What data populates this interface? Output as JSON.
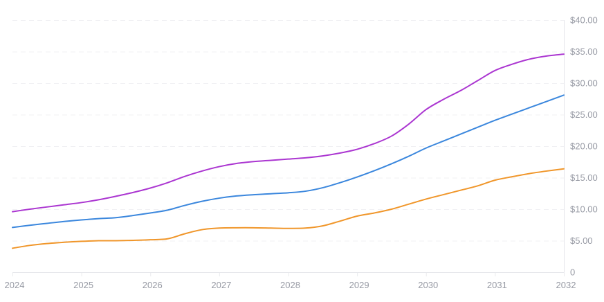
{
  "chart_data": {
    "type": "line",
    "title": "",
    "xlabel": "",
    "ylabel": "",
    "xlim": [
      2024,
      2032
    ],
    "ylim": [
      0,
      40
    ],
    "grid": "horizontal-dashed",
    "legend_position": "none",
    "y_axis_side": "right",
    "x": [
      2024,
      2024.25,
      2024.5,
      2024.75,
      2025,
      2025.25,
      2025.5,
      2025.75,
      2026,
      2026.25,
      2026.5,
      2026.75,
      2027,
      2027.25,
      2027.5,
      2027.75,
      2028,
      2028.25,
      2028.5,
      2028.75,
      2029,
      2029.25,
      2029.5,
      2029.75,
      2030,
      2030.25,
      2030.5,
      2030.75,
      2031,
      2031.25,
      2031.5,
      2031.75,
      2032
    ],
    "series": [
      {
        "name": "purple-line",
        "color": "#ab36d1",
        "values": [
          9.6,
          10.0,
          10.35,
          10.7,
          11.05,
          11.5,
          12.05,
          12.65,
          13.35,
          14.2,
          15.2,
          16.05,
          16.75,
          17.25,
          17.55,
          17.75,
          17.95,
          18.15,
          18.45,
          18.9,
          19.5,
          20.4,
          21.6,
          23.5,
          25.8,
          27.4,
          28.8,
          30.4,
          32.0,
          33.0,
          33.8,
          34.3,
          34.6
        ]
      },
      {
        "name": "blue-line",
        "color": "#3b87dd",
        "values": [
          7.1,
          7.45,
          7.75,
          8.05,
          8.3,
          8.5,
          8.65,
          9.0,
          9.4,
          9.85,
          10.6,
          11.25,
          11.75,
          12.1,
          12.3,
          12.45,
          12.6,
          12.85,
          13.4,
          14.2,
          15.1,
          16.1,
          17.2,
          18.4,
          19.7,
          20.8,
          21.9,
          23.0,
          24.1,
          25.1,
          26.1,
          27.1,
          28.1
        ]
      },
      {
        "name": "orange-line",
        "color": "#f0962a",
        "values": [
          3.8,
          4.25,
          4.55,
          4.75,
          4.9,
          5.0,
          5.0,
          5.05,
          5.15,
          5.3,
          6.1,
          6.75,
          7.0,
          7.05,
          7.05,
          7.0,
          6.95,
          7.0,
          7.35,
          8.1,
          8.9,
          9.4,
          10.0,
          10.8,
          11.6,
          12.3,
          13.0,
          13.7,
          14.6,
          15.15,
          15.65,
          16.05,
          16.4
        ]
      }
    ],
    "xticks": [
      {
        "value": 2024,
        "label": "2024"
      },
      {
        "value": 2025,
        "label": "2025"
      },
      {
        "value": 2026,
        "label": "2026"
      },
      {
        "value": 2027,
        "label": "2027"
      },
      {
        "value": 2028,
        "label": "2028"
      },
      {
        "value": 2029,
        "label": "2029"
      },
      {
        "value": 2030,
        "label": "2030"
      },
      {
        "value": 2031,
        "label": "2031"
      },
      {
        "value": 2032,
        "label": "2032"
      }
    ],
    "yticks": [
      {
        "value": 40,
        "label": "$40.00"
      },
      {
        "value": 35,
        "label": "$35.00"
      },
      {
        "value": 30,
        "label": "$30.00"
      },
      {
        "value": 25,
        "label": "$25.00"
      },
      {
        "value": 20,
        "label": "$20.00"
      },
      {
        "value": 15,
        "label": "$15.00"
      },
      {
        "value": 10,
        "label": "$10.00"
      },
      {
        "value": 5,
        "label": "$5.00"
      },
      {
        "value": 0,
        "label": "0"
      }
    ],
    "colors": {
      "background": "#ffffff",
      "grid_color": "#f0f0f3",
      "axis_color": "#e5e6ea",
      "tick_color": "#eaebee",
      "label_color": "#979aa4"
    }
  }
}
